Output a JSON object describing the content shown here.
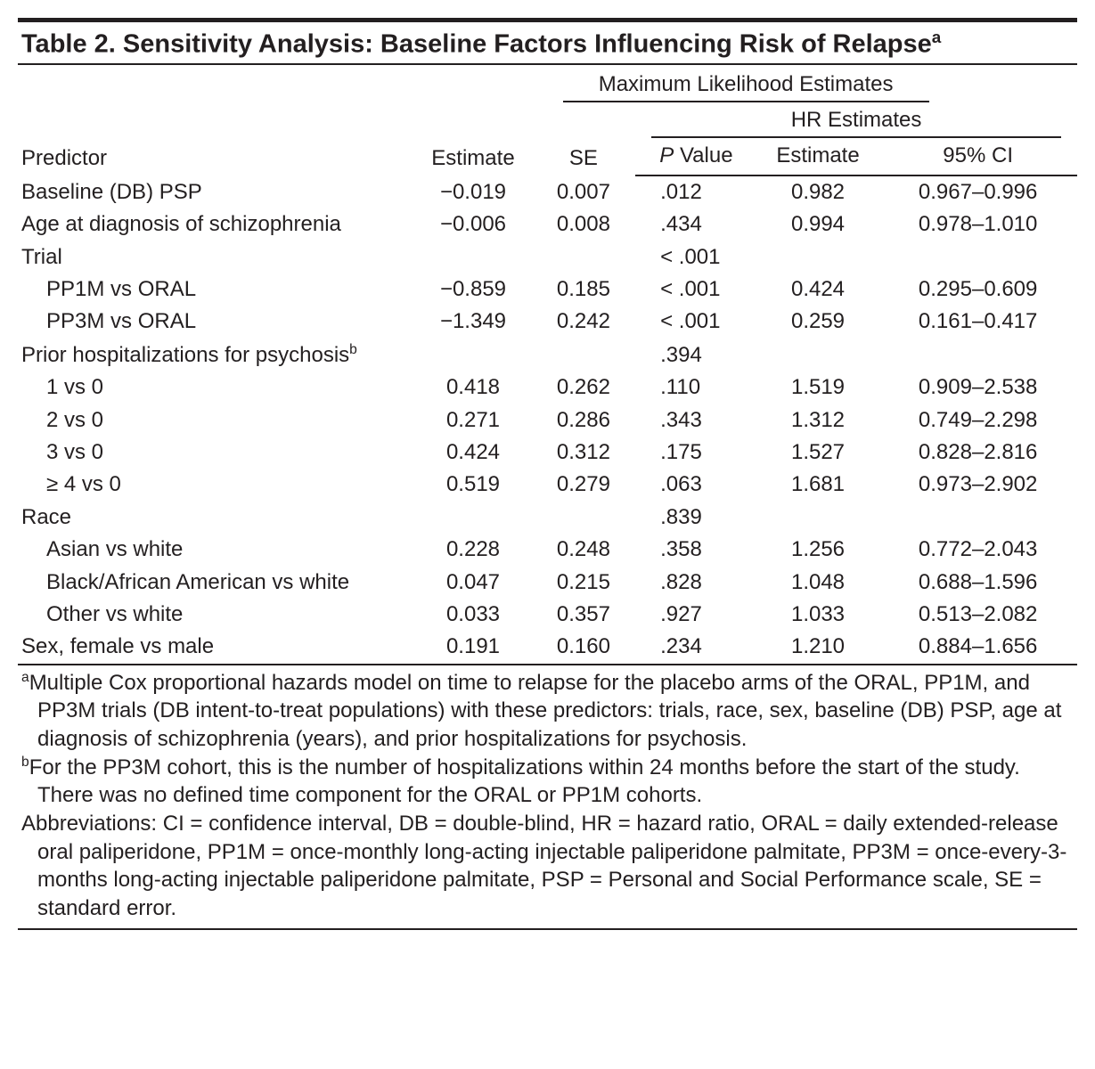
{
  "title_html": "Table 2. Sensitivity Analysis: Baseline Factors Influencing Risk of Relapse",
  "title_sup": "a",
  "headers": {
    "mle": "Maximum Likelihood Estimates",
    "hr": "HR Estimates",
    "predictor": "Predictor",
    "est": "Estimate",
    "se": "SE",
    "pval_html": "Value",
    "pval_prefix": "P",
    "hrest": "Estimate",
    "ci": "95% CI"
  },
  "col_widths": [
    "440",
    "130",
    "115",
    "135",
    "135",
    "220"
  ],
  "rows": [
    {
      "label": "Baseline (DB) PSP",
      "indent": false,
      "est": "−0.019",
      "se": "0.007",
      "p": ".012",
      "hr": "0.982",
      "ci": "0.967–0.996"
    },
    {
      "label": "Age at diagnosis of schizophrenia",
      "indent": false,
      "est": "−0.006",
      "se": "0.008",
      "p": ".434",
      "hr": "0.994",
      "ci": "0.978–1.010"
    },
    {
      "label": "Trial",
      "indent": false,
      "est": "",
      "se": "",
      "p": "< .001",
      "hr": "",
      "ci": ""
    },
    {
      "label": "PP1M vs ORAL",
      "indent": true,
      "est": "−0.859",
      "se": "0.185",
      "p": "< .001",
      "hr": "0.424",
      "ci": "0.295–0.609"
    },
    {
      "label": "PP3M vs ORAL",
      "indent": true,
      "est": "−1.349",
      "se": "0.242",
      "p": "< .001",
      "hr": "0.259",
      "ci": "0.161–0.417"
    },
    {
      "label": "Prior hospitalizations for psychosis",
      "sup": "b",
      "indent": false,
      "est": "",
      "se": "",
      "p": ".394",
      "hr": "",
      "ci": ""
    },
    {
      "label": "1 vs 0",
      "indent": true,
      "est": "0.418",
      "se": "0.262",
      "p": ".110",
      "hr": "1.519",
      "ci": "0.909–2.538"
    },
    {
      "label": "2 vs 0",
      "indent": true,
      "est": "0.271",
      "se": "0.286",
      "p": ".343",
      "hr": "1.312",
      "ci": "0.749–2.298"
    },
    {
      "label": "3 vs 0",
      "indent": true,
      "est": "0.424",
      "se": "0.312",
      "p": ".175",
      "hr": "1.527",
      "ci": "0.828–2.816"
    },
    {
      "label": "≥ 4 vs 0",
      "indent": true,
      "est": "0.519",
      "se": "0.279",
      "p": ".063",
      "hr": "1.681",
      "ci": "0.973–2.902"
    },
    {
      "label": "Race",
      "indent": false,
      "est": "",
      "se": "",
      "p": ".839",
      "hr": "",
      "ci": ""
    },
    {
      "label": "Asian vs white",
      "indent": true,
      "est": "0.228",
      "se": "0.248",
      "p": ".358",
      "hr": "1.256",
      "ci": "0.772–2.043"
    },
    {
      "label": "Black/African American vs white",
      "indent": true,
      "est": "0.047",
      "se": "0.215",
      "p": ".828",
      "hr": "1.048",
      "ci": "0.688–1.596"
    },
    {
      "label": "Other vs white",
      "indent": true,
      "est": "0.033",
      "se": "0.357",
      "p": ".927",
      "hr": "1.033",
      "ci": "0.513–2.082"
    },
    {
      "label": "Sex, female vs male",
      "indent": false,
      "est": "0.191",
      "se": "0.160",
      "p": ".234",
      "hr": "1.210",
      "ci": "0.884–1.656"
    }
  ],
  "footnotes": [
    {
      "sup": "a",
      "text": "Multiple Cox proportional hazards model on time to relapse for the placebo arms of the ORAL, PP1M, and PP3M trials (DB intent-to-treat populations) with these predictors: trials, race, sex, baseline (DB) PSP, age at diagnosis of schizophrenia (years), and prior hospitalizations for psychosis."
    },
    {
      "sup": "b",
      "text": "For the PP3M cohort, this is the number of hospitalizations within 24 months before the start of the study. There was no defined time component for the ORAL or PP1M cohorts."
    },
    {
      "sup": "",
      "text": "Abbreviations: CI = confidence interval, DB = double-blind, HR = hazard ratio, ORAL = daily extended-release oral paliperidone, PP1M = once-monthly long-acting injectable paliperidone palmitate, PP3M = once-every-3-months long-acting injectable paliperidone palmitate, PSP = Personal and Social Performance scale, SE = standard error."
    }
  ]
}
